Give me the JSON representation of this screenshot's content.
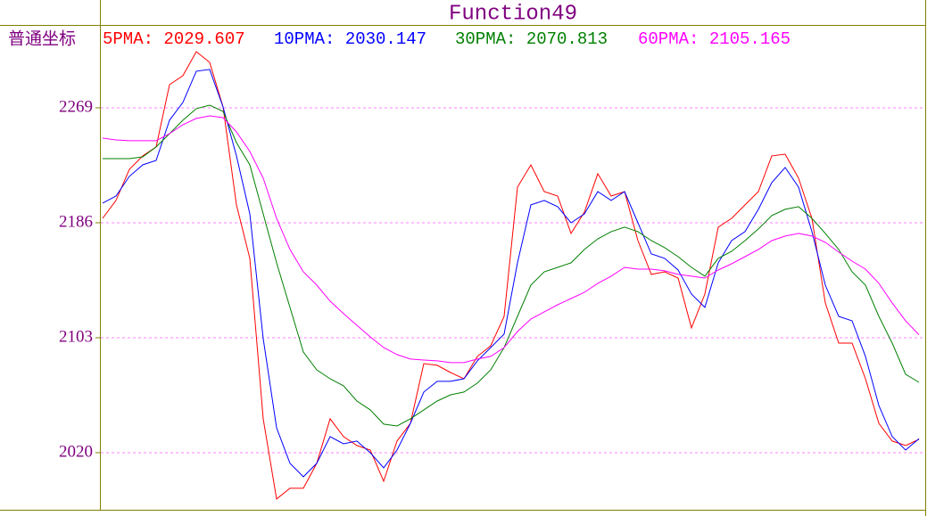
{
  "chart_data": {
    "type": "line",
    "title": "Function49",
    "y_label": "普通坐标",
    "categories": [
      null,
      null,
      null,
      null,
      null,
      null,
      null,
      null,
      null,
      null,
      null,
      null,
      null,
      null,
      null,
      null,
      null,
      null,
      null,
      null,
      null,
      null,
      null,
      null,
      null,
      null,
      null,
      null,
      null,
      null,
      null,
      null,
      null,
      null,
      null,
      null,
      null,
      null,
      null,
      null,
      null,
      null,
      null,
      null,
      null,
      null,
      null,
      null,
      null,
      null,
      null,
      null,
      null,
      null,
      null,
      null,
      null,
      null,
      null,
      null,
      null,
      null
    ],
    "series": [
      {
        "name": "5PMA: 2029.607",
        "color": "#ff0000",
        "values": [
          2189.2,
          2202.1,
          2224.6,
          2234.3,
          2240.7,
          2285.7,
          2292.2,
          2309.5,
          2301.8,
          2269.6,
          2198.9,
          2160.3,
          2044.5,
          1986.6,
          1994.3,
          1994.3,
          2012.3,
          2044.5,
          2031.6,
          2025.2,
          2021.9,
          1999.4,
          2028.4,
          2041.2,
          2084.3,
          2083.1,
          2077.9,
          2073.4,
          2089.5,
          2097.2,
          2118.4,
          2211.7,
          2227.8,
          2208.5,
          2205.3,
          2178.3,
          2193.7,
          2221.4,
          2205.3,
          2208.5,
          2173.1,
          2148.7,
          2150.6,
          2146.1,
          2110.1,
          2134.5,
          2182.8,
          2189.2,
          2198.9,
          2208.5,
          2234.3,
          2235.5,
          2218.2,
          2189.2,
          2128.1,
          2099.1,
          2099.1,
          2073.4,
          2041.2,
          2028.4,
          2025.2,
          2029.607
        ]
      },
      {
        "name": "10PMA: 2030.147",
        "color": "#0000ff",
        "values": [
          2200.2,
          2205.3,
          2219.5,
          2227.8,
          2231.0,
          2260.0,
          2272.9,
          2295.4,
          2296.7,
          2269.6,
          2234.3,
          2192.4,
          2102.4,
          2038.0,
          2012.3,
          2002.6,
          2012.3,
          2031.6,
          2026.4,
          2028.4,
          2020.0,
          2009.1,
          2021.9,
          2041.2,
          2063.8,
          2071.5,
          2071.5,
          2073.4,
          2086.3,
          2095.9,
          2105.6,
          2157.1,
          2198.9,
          2202.1,
          2197.6,
          2186.0,
          2192.4,
          2208.5,
          2202.1,
          2208.5,
          2186.0,
          2163.5,
          2160.3,
          2151.9,
          2134.5,
          2124.9,
          2157.1,
          2173.1,
          2179.6,
          2195.7,
          2215.0,
          2225.9,
          2211.7,
          2179.6,
          2141.0,
          2118.4,
          2115.2,
          2089.5,
          2054.1,
          2031.6,
          2021.9,
          2030.147
        ]
      },
      {
        "name": "30PMA: 2070.813",
        "color": "#008000",
        "values": [
          2232.3,
          2232.3,
          2232.3,
          2233.6,
          2240.7,
          2250.3,
          2260.0,
          2268.4,
          2270.9,
          2266.4,
          2243.9,
          2227.8,
          2192.4,
          2157.1,
          2124.9,
          2092.7,
          2079.8,
          2073.4,
          2068.3,
          2057.3,
          2050.9,
          2040.6,
          2039.3,
          2044.5,
          2050.9,
          2057.3,
          2061.8,
          2063.8,
          2070.2,
          2079.8,
          2095.9,
          2118.4,
          2141.0,
          2150.6,
          2153.8,
          2157.1,
          2166.7,
          2174.4,
          2179.6,
          2182.8,
          2179.6,
          2173.1,
          2168.0,
          2161.5,
          2153.8,
          2147.4,
          2160.3,
          2165.4,
          2173.1,
          2181.5,
          2191.2,
          2195.7,
          2197.6,
          2189.2,
          2178.3,
          2166.7,
          2150.6,
          2141.0,
          2118.4,
          2099.1,
          2076.6,
          2070.813
        ]
      },
      {
        "name": "60PMA: 2105.165",
        "color": "#ff00ff",
        "values": [
          2247.1,
          2245.8,
          2245.2,
          2245.2,
          2245.2,
          2250.3,
          2256.8,
          2261.3,
          2263.2,
          2261.9,
          2251.6,
          2237.5,
          2218.2,
          2189.2,
          2166.7,
          2150.6,
          2141.0,
          2129.4,
          2120.4,
          2112.0,
          2103.6,
          2095.9,
          2090.8,
          2087.6,
          2086.9,
          2086.3,
          2085.0,
          2085.0,
          2087.6,
          2089.5,
          2095.9,
          2107.5,
          2116.5,
          2121.7,
          2126.8,
          2131.3,
          2135.8,
          2142.3,
          2147.4,
          2153.8,
          2152.5,
          2152.5,
          2151.3,
          2148.7,
          2147.4,
          2146.1,
          2151.9,
          2156.4,
          2161.5,
          2166.7,
          2173.1,
          2176.4,
          2178.3,
          2176.4,
          2171.9,
          2164.8,
          2158.3,
          2152.5,
          2142.3,
          2128.1,
          2115.2,
          2105.165
        ]
      }
    ],
    "ylim": [
      1978.8,
      2328.8
    ],
    "yticks": [
      2020,
      2103,
      2186,
      2269
    ],
    "grid": true
  }
}
